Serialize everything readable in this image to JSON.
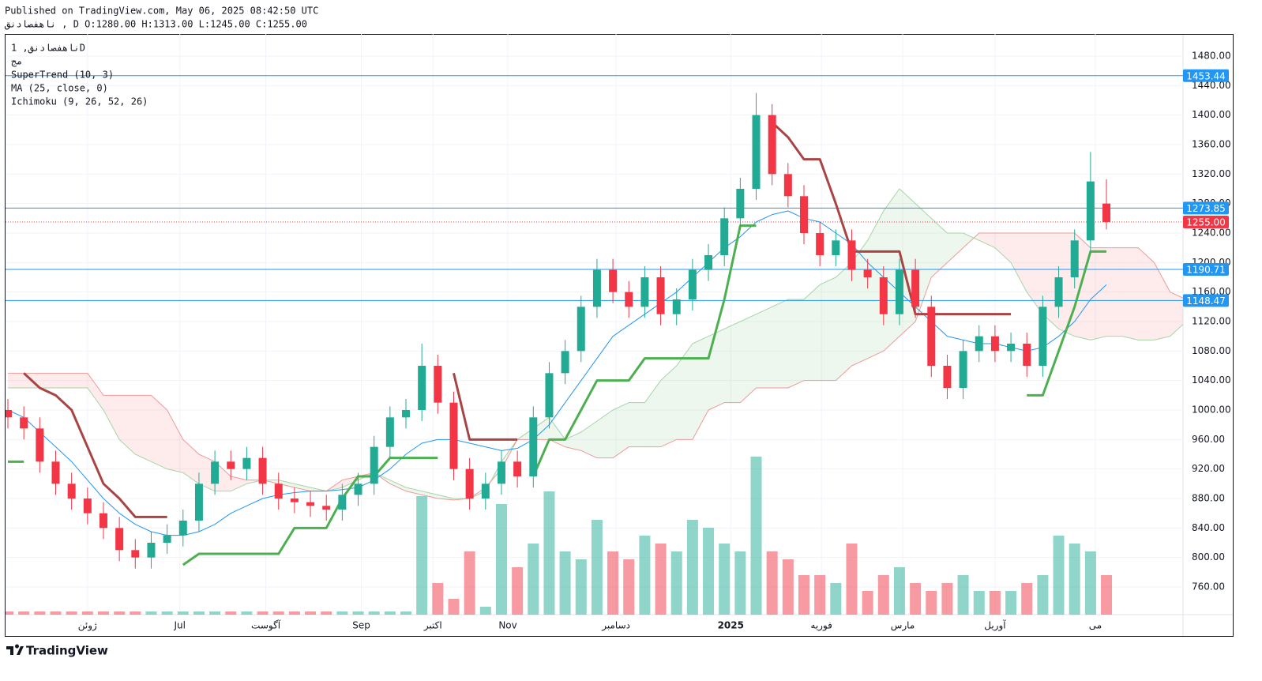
{
  "header": {
    "published": "Published on TradingView.com, May 06, 2025 08:42:50 UTC",
    "ohlc_line": "ناهفصادنق , D  O:1280.00 H:1313.00 L:1245.00 C:1255.00"
  },
  "legend": [
    "ناهفصادنق, 1D",
    "مج",
    "SuperTrend (10, 3)",
    "MA (25, close, 0)",
    "Ichimoku (9, 26, 52, 26)"
  ],
  "footer": "TradingView",
  "chart_data": {
    "type": "candlestick",
    "open": [
      1000,
      990,
      975,
      930,
      900,
      880,
      860,
      840,
      810,
      800,
      820,
      830,
      850,
      900,
      930,
      920,
      935,
      900,
      880,
      875,
      870,
      865,
      885,
      900,
      950,
      990,
      1000,
      1060,
      1010,
      920,
      880,
      900,
      930,
      910,
      990,
      1050,
      1080,
      1140,
      1190,
      1160,
      1140,
      1180,
      1130,
      1150,
      1190,
      1210,
      1260,
      1300,
      1400,
      1320,
      1290,
      1240,
      1210,
      1230,
      1190,
      1180,
      1130,
      1190,
      1140,
      1060,
      1030,
      1080,
      1100,
      1080,
      1090,
      1060,
      1140,
      1180,
      1230,
      1280
    ],
    "high": [
      1015,
      1005,
      990,
      945,
      915,
      895,
      875,
      855,
      825,
      835,
      845,
      865,
      915,
      945,
      945,
      950,
      950,
      915,
      895,
      890,
      885,
      900,
      915,
      965,
      1005,
      1015,
      1090,
      1075,
      1025,
      935,
      915,
      945,
      945,
      1005,
      1065,
      1095,
      1155,
      1205,
      1205,
      1175,
      1195,
      1195,
      1165,
      1205,
      1225,
      1275,
      1315,
      1430,
      1415,
      1335,
      1305,
      1255,
      1245,
      1245,
      1205,
      1195,
      1205,
      1205,
      1155,
      1075,
      1095,
      1115,
      1115,
      1105,
      1105,
      1155,
      1195,
      1245,
      1350,
      1313
    ],
    "low": [
      975,
      960,
      915,
      885,
      865,
      845,
      825,
      795,
      785,
      785,
      805,
      815,
      835,
      885,
      905,
      905,
      885,
      865,
      860,
      855,
      850,
      850,
      870,
      885,
      935,
      975,
      985,
      995,
      905,
      865,
      865,
      885,
      895,
      895,
      975,
      1035,
      1065,
      1125,
      1145,
      1125,
      1125,
      1115,
      1115,
      1135,
      1175,
      1195,
      1245,
      1285,
      1305,
      1275,
      1225,
      1195,
      1195,
      1175,
      1165,
      1115,
      1115,
      1125,
      1045,
      1015,
      1015,
      1065,
      1065,
      1065,
      1045,
      1045,
      1125,
      1165,
      1215,
      1245
    ],
    "close": [
      990,
      975,
      930,
      900,
      880,
      860,
      840,
      810,
      800,
      820,
      830,
      850,
      900,
      930,
      920,
      935,
      900,
      880,
      875,
      870,
      865,
      885,
      900,
      950,
      990,
      1000,
      1060,
      1010,
      920,
      880,
      900,
      930,
      910,
      990,
      1050,
      1080,
      1140,
      1190,
      1160,
      1140,
      1180,
      1130,
      1150,
      1190,
      1210,
      1260,
      1300,
      1400,
      1320,
      1290,
      1240,
      1210,
      1230,
      1190,
      1180,
      1130,
      1190,
      1140,
      1060,
      1030,
      1080,
      1100,
      1080,
      1090,
      1060,
      1140,
      1180,
      1230,
      1310,
      1255
    ],
    "volume": [
      2,
      2,
      2,
      2,
      2,
      2,
      2,
      2,
      2,
      2,
      2,
      2,
      2,
      2,
      2,
      2,
      2,
      2,
      2,
      2,
      2,
      2,
      2,
      2,
      2,
      2,
      75,
      20,
      10,
      40,
      5,
      70,
      30,
      45,
      78,
      40,
      35,
      60,
      40,
      35,
      50,
      45,
      40,
      60,
      55,
      45,
      40,
      100,
      40,
      35,
      25,
      25,
      20,
      45,
      15,
      25,
      30,
      20,
      15,
      20,
      25,
      15,
      15,
      15,
      20,
      25,
      50,
      45,
      40,
      25
    ],
    "volume_lim": [
      0,
      100
    ],
    "supertrend_up": [
      930,
      930,
      null,
      null,
      null,
      null,
      null,
      null,
      null,
      null,
      null,
      790,
      805,
      805,
      805,
      805,
      805,
      805,
      840,
      840,
      840,
      880,
      910,
      910,
      935,
      935,
      935,
      935,
      null,
      null,
      null,
      null,
      null,
      910,
      960,
      960,
      1000,
      1040,
      1040,
      1040,
      1070,
      1070,
      1070,
      1070,
      1070,
      1150,
      1250,
      1250,
      null,
      null,
      null,
      null,
      null,
      null,
      null,
      null,
      null,
      null,
      null,
      null,
      null,
      null,
      null,
      null,
      1020,
      1020,
      1080,
      1140,
      1215,
      1215
    ],
    "supertrend_down": [
      null,
      1050,
      1030,
      1020,
      1000,
      950,
      900,
      880,
      855,
      855,
      855,
      null,
      null,
      null,
      null,
      null,
      null,
      null,
      null,
      null,
      null,
      null,
      null,
      null,
      null,
      null,
      null,
      null,
      1050,
      960,
      960,
      960,
      960,
      null,
      null,
      null,
      null,
      null,
      null,
      null,
      null,
      null,
      null,
      null,
      null,
      null,
      null,
      null,
      1390,
      1370,
      1340,
      1340,
      1280,
      1215,
      1215,
      1215,
      1215,
      1130,
      1130,
      1130,
      1130,
      1130,
      1130,
      1130,
      null,
      null,
      null,
      null,
      null,
      null
    ],
    "ma": [
      1000,
      990,
      970,
      950,
      930,
      905,
      880,
      860,
      845,
      835,
      830,
      830,
      835,
      845,
      860,
      870,
      880,
      885,
      888,
      890,
      890,
      892,
      895,
      905,
      920,
      940,
      955,
      960,
      960,
      955,
      950,
      945,
      948,
      960,
      980,
      1010,
      1040,
      1070,
      1100,
      1115,
      1130,
      1145,
      1160,
      1180,
      1200,
      1220,
      1235,
      1255,
      1265,
      1270,
      1260,
      1255,
      1240,
      1225,
      1200,
      1180,
      1160,
      1140,
      1120,
      1100,
      1095,
      1090,
      1090,
      1085,
      1080,
      1085,
      1100,
      1120,
      1150,
      1170
    ],
    "span_a": [
      1030,
      1030,
      1030,
      1030,
      1030,
      1030,
      1000,
      960,
      940,
      930,
      920,
      915,
      900,
      890,
      890,
      900,
      905,
      905,
      900,
      895,
      890,
      895,
      905,
      915,
      905,
      895,
      890,
      885,
      880,
      880,
      890,
      930,
      960,
      975,
      990,
      960,
      970,
      985,
      1000,
      1010,
      1010,
      1040,
      1060,
      1090,
      1100,
      1110,
      1120,
      1130,
      1140,
      1150,
      1150,
      1170,
      1180,
      1200,
      1230,
      1270,
      1300,
      1280,
      1260,
      1240,
      1240,
      1230,
      1220,
      1200,
      1160,
      1130,
      1110,
      1100,
      1095,
      1100,
      1100,
      1095,
      1095,
      1100,
      1120
    ],
    "span_b": [
      1050,
      1050,
      1050,
      1050,
      1050,
      1050,
      1020,
      1020,
      1020,
      1020,
      1000,
      960,
      940,
      930,
      910,
      905,
      905,
      900,
      895,
      890,
      890,
      905,
      910,
      915,
      900,
      890,
      885,
      880,
      878,
      880,
      895,
      920,
      960,
      960,
      960,
      950,
      945,
      935,
      935,
      950,
      950,
      950,
      960,
      960,
      1000,
      1010,
      1010,
      1030,
      1030,
      1030,
      1040,
      1040,
      1040,
      1060,
      1070,
      1080,
      1100,
      1120,
      1180,
      1200,
      1220,
      1240,
      1240,
      1240,
      1240,
      1240,
      1240,
      1240,
      1220,
      1220,
      1220,
      1220,
      1200,
      1160,
      1150
    ],
    "levels": [
      {
        "value": 1453.44,
        "color": "#2196f3"
      },
      {
        "value": 1273.85,
        "color": "#2196f3"
      },
      {
        "value": 1190.71,
        "color": "#2196f3"
      },
      {
        "value": 1148.47,
        "color": "#2196f3"
      }
    ],
    "last_price": {
      "value": 1255,
      "label": "1255.00",
      "color": "#f23645"
    },
    "up_color": "#22ab94",
    "down_color": "#f23645",
    "xlim": [
      -0.15,
      73.81
    ],
    "xticks": [
      {
        "value": 5,
        "label": "ژوئن"
      },
      {
        "value": 10.8,
        "label": "Jul"
      },
      {
        "value": 16.2,
        "label": "آگوست"
      },
      {
        "value": 22.2,
        "label": "Sep"
      },
      {
        "value": 26.7,
        "label": "اکتبر"
      },
      {
        "value": 31.4,
        "label": "Nov"
      },
      {
        "value": 38.2,
        "label": "دسامبر"
      },
      {
        "value": 45.4,
        "label": "2025"
      },
      {
        "value": 51.1,
        "label": "فوریه"
      },
      {
        "value": 56.2,
        "label": "مارس"
      },
      {
        "value": 62,
        "label": "آوریل"
      },
      {
        "value": 68.3,
        "label": "می"
      }
    ],
    "ylim": [
      722.5,
      1510
    ],
    "yticks": [
      {
        "value": 760,
        "label": "760.00"
      },
      {
        "value": 800,
        "label": "800.00"
      },
      {
        "value": 840,
        "label": "840.00"
      },
      {
        "value": 880,
        "label": "880.00"
      },
      {
        "value": 920,
        "label": "920.00"
      },
      {
        "value": 960,
        "label": "960.00"
      },
      {
        "value": 1000,
        "label": "1000.00"
      },
      {
        "value": 1040,
        "label": "1040.00"
      },
      {
        "value": 1080,
        "label": "1080.00"
      },
      {
        "value": 1120,
        "label": "1120.00"
      },
      {
        "value": 1160,
        "label": "1160.00"
      },
      {
        "value": 1200,
        "label": "1200.00"
      },
      {
        "value": 1240,
        "label": "1240.00"
      },
      {
        "value": 1280,
        "label": "1280.00"
      },
      {
        "value": 1320,
        "label": "1320.00"
      },
      {
        "value": 1360,
        "label": "1360.00"
      },
      {
        "value": 1400,
        "label": "1400.00"
      },
      {
        "value": 1440,
        "label": "1440.00"
      },
      {
        "value": 1480,
        "label": "1480.00"
      }
    ],
    "grid": true
  }
}
